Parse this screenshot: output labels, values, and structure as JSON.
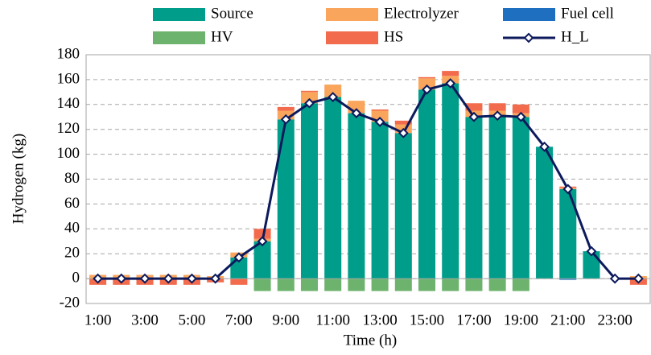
{
  "chart_data": {
    "type": "bar",
    "stacked": true,
    "x_label": "Time (h)",
    "y_label": "Hydrogen (kg)",
    "categories": [
      "1:00",
      null,
      "3:00",
      null,
      "5:00",
      null,
      "7:00",
      null,
      "9:00",
      null,
      "11:00",
      null,
      "13:00",
      null,
      "15:00",
      null,
      "17:00",
      null,
      "19:00",
      null,
      "21:00",
      null,
      "23:00",
      null
    ],
    "series": [
      {
        "name": "Source",
        "color": "#009e8a",
        "values": [
          0,
          0,
          0,
          0,
          0,
          0,
          17,
          30,
          128,
          141,
          146,
          133,
          126,
          117,
          152,
          157,
          130,
          131,
          130,
          106,
          72,
          22,
          0,
          0
        ]
      },
      {
        "name": "Electrolyzer",
        "color": "#f9a55c",
        "values": [
          3,
          3,
          3,
          3,
          3,
          2,
          4,
          2,
          7,
          9,
          10,
          10,
          9,
          7,
          9,
          6,
          5,
          4,
          3,
          0,
          1,
          0,
          0,
          2
        ]
      },
      {
        "name": "Fuel cell",
        "color": "#1f6fc0",
        "values": [
          0,
          0,
          0,
          0,
          0,
          0,
          0,
          0,
          0,
          0,
          0,
          0,
          0,
          0,
          0,
          0,
          0,
          0,
          0,
          0,
          -1,
          0,
          0,
          0
        ]
      },
      {
        "name": "HV",
        "color": "#6db36d",
        "values": [
          0,
          0,
          0,
          0,
          0,
          0,
          0,
          -10,
          -10,
          -10,
          -10,
          -10,
          -10,
          -10,
          -10,
          -10,
          -10,
          -10,
          -10,
          0,
          0,
          0,
          0,
          0
        ]
      },
      {
        "name": "HS",
        "color": "#f26b4c",
        "values": [
          -5,
          -5,
          -5,
          -5,
          -5,
          -3,
          -5,
          8,
          3,
          1,
          0,
          0,
          1,
          3,
          1,
          4,
          6,
          6,
          7,
          0,
          1,
          0,
          0,
          -5
        ]
      },
      {
        "name": "H_L",
        "type": "line",
        "color": "#0c1a5c",
        "values": [
          0,
          0,
          0,
          0,
          0,
          0,
          17,
          30,
          128,
          141,
          146,
          133,
          126,
          117,
          152,
          157,
          130,
          131,
          130,
          106,
          72,
          22,
          0,
          0
        ]
      }
    ],
    "ylim": [
      -20,
      180
    ],
    "yticks": [
      -20,
      0,
      20,
      40,
      60,
      80,
      100,
      120,
      140,
      160,
      180
    ],
    "grid": true
  }
}
